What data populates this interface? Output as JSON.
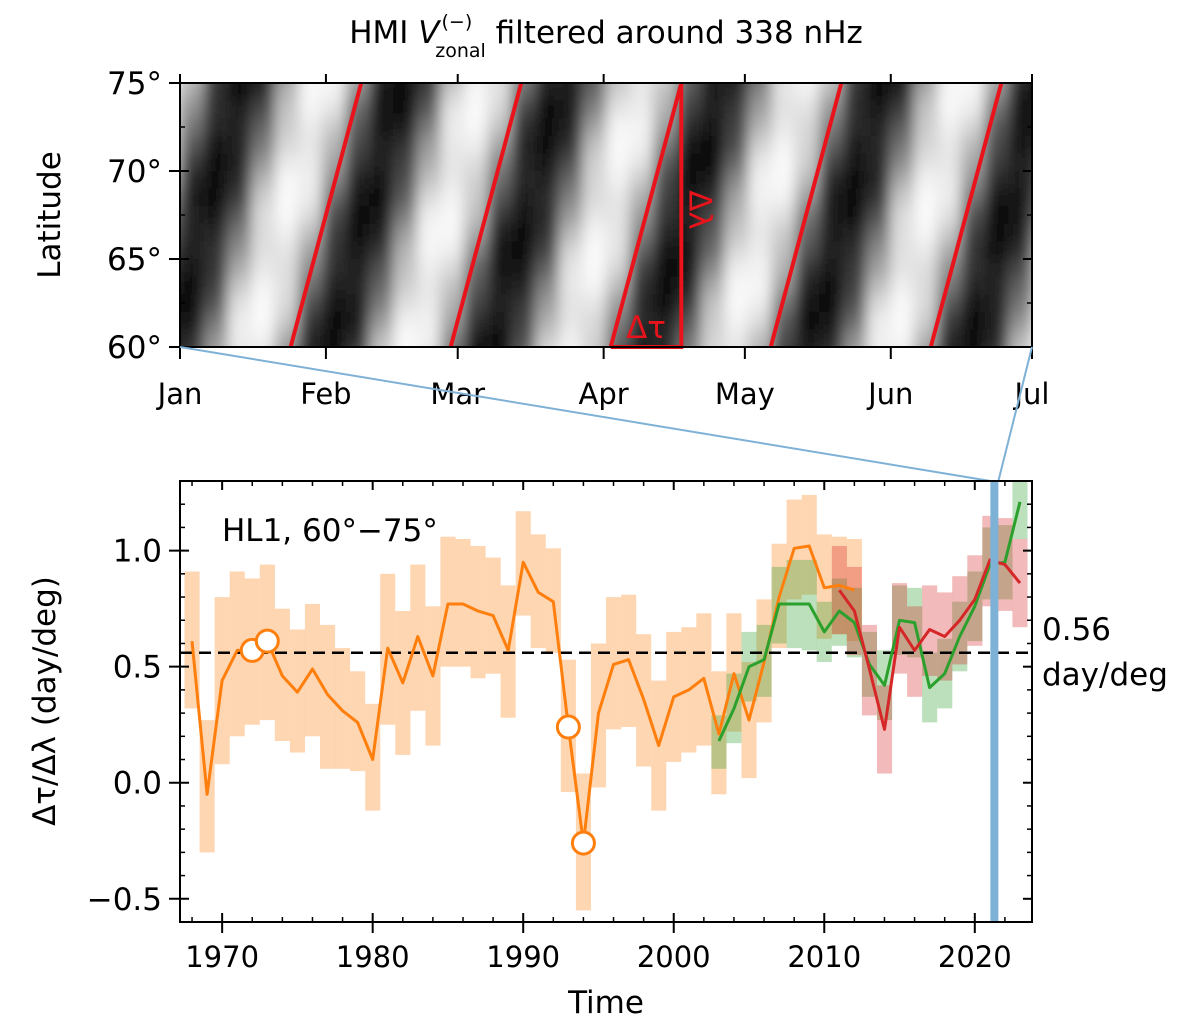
{
  "figure": {
    "description_label": "Two-panel figure"
  },
  "chart_data": [
    {
      "type": "heatmap",
      "title_prefix": "HMI ",
      "title_var": "V",
      "title_sup": "(−)",
      "title_sub": "zonal",
      "title_suffix": " filtered around 338 nHz",
      "ylabel": "Latitude",
      "x_ticks": [
        "Jan",
        "Feb",
        "Mar",
        "Apr",
        "May",
        "Jun",
        "Jul"
      ],
      "x_tick_days": [
        0,
        31,
        59,
        90,
        120,
        151,
        181
      ],
      "xlim_days": [
        0,
        181
      ],
      "y_ticks": [
        "60°",
        "65°",
        "70°",
        "75°"
      ],
      "y_tick_values": [
        60,
        65,
        70,
        75
      ],
      "ylim": [
        60,
        75
      ],
      "pattern_slope_day_per_deg": 1,
      "phase_lines_start_day": [
        23.5,
        57.5,
        91.5,
        125.5,
        159.5
      ],
      "phase_lines_end_day": [
        38.5,
        72.5,
        106.5,
        140.5,
        174.5
      ],
      "annotation_dtau": "Δτ",
      "annotation_dlambda": "Δλ",
      "line_color": "#e8131b"
    },
    {
      "type": "line",
      "xlabel": "Time",
      "ylabel": "Δτ/Δλ (day/deg)",
      "xlim": [
        1967.2,
        2023.8
      ],
      "ylim": [
        -0.6,
        1.3
      ],
      "x_ticks": [
        1970,
        1980,
        1990,
        2000,
        2010,
        2020
      ],
      "y_ticks": [
        -0.5,
        0.0,
        0.5,
        1.0
      ],
      "y_tick_labels": [
        "−0.5",
        "0.0",
        "0.5",
        "1.0"
      ],
      "annotation": "HL1, 60°−75°",
      "reference_line": {
        "value": 0.56,
        "label_top": "0.56",
        "label_bottom": "day/deg",
        "color": "#000000"
      },
      "highlight_year": 2021.3,
      "highlight_color": "#7eb1d6",
      "series": [
        {
          "name": "orange",
          "color": "#ff7f0e",
          "x": [
            1968,
            1969,
            1970,
            1971,
            1972,
            1973,
            1974,
            1975,
            1976,
            1977,
            1978,
            1979,
            1980,
            1981,
            1982,
            1983,
            1984,
            1985,
            1986,
            1987,
            1988,
            1989,
            1990,
            1991,
            1992,
            1993,
            1994,
            1995,
            1996,
            1997,
            1998,
            1999,
            2000,
            2001,
            2002,
            2003,
            2004,
            2005,
            2006,
            2007,
            2008,
            2009,
            2010,
            2011,
            2012
          ],
          "y": [
            0.61,
            -0.05,
            0.44,
            0.57,
            0.57,
            0.61,
            0.46,
            0.39,
            0.49,
            0.38,
            0.31,
            0.26,
            0.1,
            0.58,
            0.43,
            0.63,
            0.46,
            0.77,
            0.77,
            0.74,
            0.72,
            0.57,
            0.95,
            0.82,
            0.78,
            0.24,
            -0.26,
            0.3,
            0.51,
            0.53,
            0.36,
            0.16,
            0.37,
            0.4,
            0.45,
            0.21,
            0.47,
            0.27,
            0.52,
            0.8,
            1.01,
            1.02,
            0.84,
            0.85,
            0.83
          ],
          "lo": [
            0.32,
            -0.3,
            0.08,
            0.2,
            0.25,
            0.27,
            0.18,
            0.13,
            0.2,
            0.06,
            0.06,
            0.05,
            -0.12,
            0.25,
            0.12,
            0.31,
            0.16,
            0.5,
            0.5,
            0.45,
            0.47,
            0.28,
            0.72,
            0.58,
            0.56,
            -0.04,
            -0.55,
            -0.02,
            0.23,
            0.24,
            0.07,
            -0.12,
            0.09,
            0.13,
            0.16,
            -0.05,
            0.22,
            0.02,
            0.26,
            0.58,
            0.79,
            0.81,
            0.62,
            0.64,
            0.61
          ],
          "hi": [
            0.91,
            0.27,
            0.8,
            0.91,
            0.88,
            0.94,
            0.75,
            0.66,
            0.77,
            0.68,
            0.58,
            0.48,
            0.34,
            0.9,
            0.74,
            0.94,
            0.76,
            1.06,
            1.05,
            1.02,
            0.97,
            0.85,
            1.17,
            1.07,
            1.01,
            0.53,
            0.04,
            0.6,
            0.8,
            0.81,
            0.64,
            0.44,
            0.65,
            0.67,
            0.73,
            0.48,
            0.73,
            0.52,
            0.79,
            1.03,
            1.22,
            1.24,
            1.07,
            1.06,
            1.05
          ],
          "open_markers": [
            {
              "x": 1972,
              "y": 0.57
            },
            {
              "x": 1973,
              "y": 0.61
            },
            {
              "x": 1993,
              "y": 0.24
            },
            {
              "x": 1994,
              "y": -0.26
            }
          ]
        },
        {
          "name": "green",
          "color": "#2ca02c",
          "x": [
            2003,
            2004,
            2005,
            2006,
            2007,
            2008,
            2009,
            2010,
            2011,
            2012,
            2013,
            2014,
            2015,
            2016,
            2017,
            2018,
            2019,
            2020,
            2021,
            2022,
            2023
          ],
          "y": [
            0.18,
            0.32,
            0.5,
            0.53,
            0.77,
            0.77,
            0.77,
            0.65,
            0.74,
            0.69,
            0.51,
            0.42,
            0.7,
            0.69,
            0.41,
            0.47,
            0.63,
            0.76,
            0.94,
            0.95,
            1.21
          ],
          "lo": [
            0.06,
            0.17,
            0.35,
            0.37,
            0.6,
            0.58,
            0.57,
            0.52,
            0.59,
            0.54,
            0.37,
            0.27,
            0.55,
            0.54,
            0.26,
            0.32,
            0.48,
            0.61,
            0.79,
            0.79,
            1.05
          ],
          "hi": [
            0.29,
            0.47,
            0.65,
            0.68,
            0.93,
            0.96,
            0.96,
            0.78,
            0.88,
            0.84,
            0.65,
            0.57,
            0.85,
            0.84,
            0.56,
            0.62,
            0.78,
            0.91,
            1.1,
            1.11,
            1.3
          ]
        },
        {
          "name": "red",
          "color": "#d62728",
          "x": [
            2011,
            2012,
            2013,
            2014,
            2015,
            2016,
            2017,
            2018,
            2019,
            2020,
            2021,
            2022,
            2023
          ],
          "y": [
            0.83,
            0.74,
            0.49,
            0.23,
            0.67,
            0.57,
            0.66,
            0.63,
            0.7,
            0.79,
            0.96,
            0.94,
            0.86
          ],
          "lo": [
            0.64,
            0.55,
            0.29,
            0.04,
            0.47,
            0.37,
            0.46,
            0.44,
            0.51,
            0.59,
            0.76,
            0.74,
            0.67
          ],
          "hi": [
            1.02,
            0.93,
            0.68,
            0.42,
            0.86,
            0.76,
            0.85,
            0.82,
            0.89,
            0.98,
            1.15,
            1.14,
            1.05
          ]
        }
      ]
    }
  ]
}
